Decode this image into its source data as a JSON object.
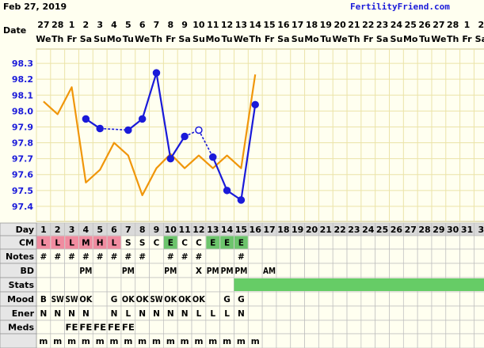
{
  "header": {
    "date_title": "Feb 27, 2019",
    "site": "FertilityFriend.com"
  },
  "labels": {
    "date": "Date",
    "day": "Day",
    "cm": "CM",
    "notes": "Notes",
    "bd": "BD",
    "stats": "Stats",
    "mood": "Mood",
    "ener": "Ener",
    "meds": "Meds"
  },
  "colors": {
    "page": "#fffff0",
    "grid": "#ebe3a8",
    "blue": "#1a1ad9",
    "orange": "#f0960a",
    "cm_low": "#f08ca0",
    "cm_high": "#6cc46c",
    "stats_fill": "#66cc66",
    "label_bg": "#e6e6e6"
  },
  "columns": {
    "dates": [
      "27",
      "28",
      "1",
      "2",
      "3",
      "4",
      "5",
      "6",
      "7",
      "8",
      "9",
      "10",
      "11",
      "12",
      "13",
      "14",
      "15",
      "16",
      "17",
      "18",
      "19",
      "20",
      "21",
      "22",
      "23",
      "24",
      "25",
      "26",
      "27",
      "28",
      "1",
      "2"
    ],
    "weekdays": [
      "We",
      "Th",
      "Fr",
      "Sa",
      "Su",
      "Mo",
      "Tu",
      "We",
      "Th",
      "Fr",
      "Sa",
      "Su",
      "Mo",
      "Tu",
      "We",
      "Th",
      "Fr",
      "Sa",
      "Su",
      "Mo",
      "Tu",
      "We",
      "Th",
      "Fr",
      "Sa",
      "Su",
      "Mo",
      "Tu",
      "We",
      "Th",
      "Fr",
      "Sa"
    ],
    "days": [
      "1",
      "2",
      "3",
      "4",
      "5",
      "6",
      "7",
      "8",
      "9",
      "10",
      "11",
      "12",
      "13",
      "14",
      "15",
      "16",
      "17",
      "18",
      "19",
      "20",
      "21",
      "22",
      "23",
      "24",
      "25",
      "26",
      "27",
      "28",
      "29",
      "30",
      "31",
      "3"
    ]
  },
  "chart_data": {
    "type": "line",
    "ylim": [
      97.3,
      98.4
    ],
    "yticks": [
      "97.4",
      "97.5",
      "97.6",
      "97.7",
      "97.8",
      "97.9",
      "98.0",
      "98.1",
      "98.2",
      "98.3"
    ],
    "series": [
      {
        "kind": "temperature",
        "color": "#1a1ad9",
        "points": [
          [
            4,
            97.95
          ],
          [
            5,
            97.89
          ],
          [
            7,
            97.88
          ],
          [
            8,
            97.95
          ],
          [
            9,
            98.24
          ],
          [
            10,
            97.7
          ],
          [
            11,
            97.84
          ],
          [
            12,
            97.88
          ],
          [
            13,
            97.71
          ],
          [
            14,
            97.5
          ],
          [
            15,
            97.44
          ],
          [
            16,
            98.04
          ]
        ],
        "open_points": [
          12
        ],
        "dashed_segments": [
          [
            5,
            7
          ],
          [
            11,
            12
          ],
          [
            12,
            13
          ]
        ]
      },
      {
        "kind": "reference",
        "color": "#f0960a",
        "points": [
          [
            1,
            98.06
          ],
          [
            2,
            97.98
          ],
          [
            3,
            98.15
          ],
          [
            4,
            97.55
          ],
          [
            5,
            97.63
          ],
          [
            6,
            97.8
          ],
          [
            7,
            97.72
          ],
          [
            8,
            97.47
          ],
          [
            9,
            97.64
          ],
          [
            10,
            97.73
          ],
          [
            11,
            97.64
          ],
          [
            12,
            97.72
          ],
          [
            13,
            97.64
          ],
          [
            14,
            97.72
          ],
          [
            15,
            97.64
          ],
          [
            16,
            98.23
          ]
        ]
      }
    ]
  },
  "rows": {
    "cm": {
      "values": [
        "L",
        "L",
        "L",
        "M",
        "H",
        "L",
        "S",
        "S",
        "C",
        "E",
        "C",
        "C",
        "E",
        "E",
        "E"
      ],
      "colors": [
        "low",
        "low",
        "low",
        "low",
        "low",
        "low",
        "",
        "",
        "",
        "high",
        "",
        "",
        "high",
        "high",
        "high"
      ]
    },
    "notes": {
      "values": [
        "#",
        "#",
        "#",
        "#",
        "#",
        "#",
        "#",
        "#",
        "",
        "#",
        "#",
        "#",
        "",
        "",
        "#"
      ]
    },
    "bd": {
      "values": [
        "",
        "",
        "",
        "PM",
        "",
        "",
        "PM",
        "",
        "",
        "PM",
        "",
        "X",
        "PM",
        "PM",
        "PM",
        "",
        "AM"
      ]
    },
    "stats": {
      "fill_from_day": 15
    },
    "mood": {
      "values": [
        "B",
        "SW",
        "SW",
        "OK",
        "",
        "G",
        "OK",
        "OK",
        "SW",
        "OK",
        "OK",
        "OK",
        "",
        "G",
        "G"
      ]
    },
    "ener": {
      "values": [
        "N",
        "N",
        "N",
        "N",
        "",
        "N",
        "L",
        "N",
        "N",
        "N",
        "N",
        "L",
        "L",
        "L",
        "N"
      ]
    },
    "meds": {
      "values": [
        "",
        "",
        "FE",
        "FE",
        "FE",
        "FE",
        "FE"
      ]
    },
    "misc": {
      "values": [
        "m",
        "m",
        "m",
        "m",
        "m",
        "m",
        "m",
        "m",
        "m",
        "m",
        "m",
        "m",
        "m",
        "m",
        "m",
        "m"
      ]
    }
  }
}
